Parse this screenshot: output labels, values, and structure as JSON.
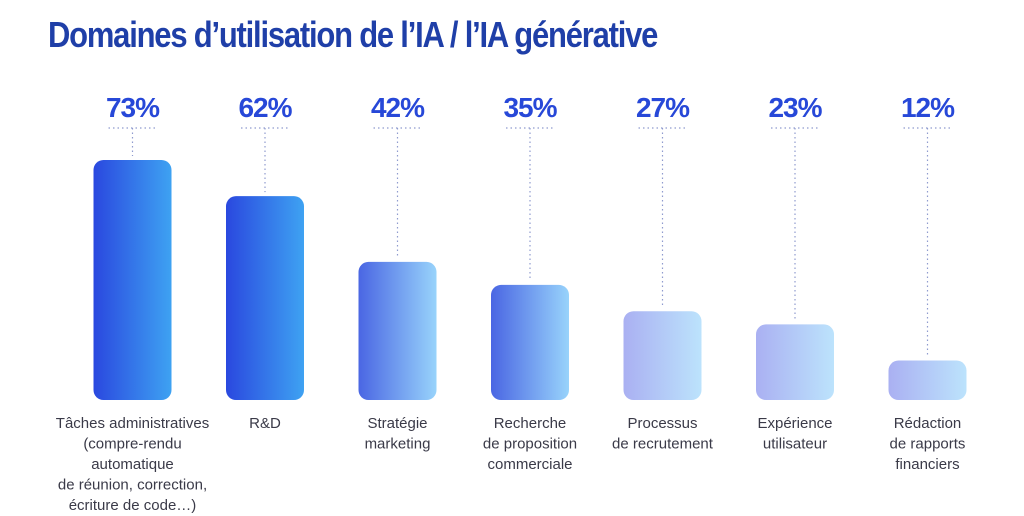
{
  "title": "Domaines d’utilisation de l’IA / l’IA générative",
  "chart_data": {
    "type": "bar",
    "title": "Domaines d’utilisation de l’IA / l’IA générative",
    "xlabel": "",
    "ylabel": "",
    "ylim": [
      0,
      100
    ],
    "categories": [
      [
        "Tâches administratives",
        "(compre-rendu",
        "automatique",
        "de réunion, correction,",
        "écriture de code…)"
      ],
      [
        "R&D"
      ],
      [
        "Stratégie",
        "marketing"
      ],
      [
        "Recherche",
        "de proposition",
        "commerciale"
      ],
      [
        "Processus",
        "de recrutement"
      ],
      [
        "Expérience",
        "utilisateur"
      ],
      [
        "Rédaction",
        "de rapports",
        "financiers"
      ]
    ],
    "values": [
      73,
      62,
      42,
      35,
      27,
      23,
      12
    ],
    "value_labels": [
      "73%",
      "62%",
      "42%",
      "35%",
      "27%",
      "23%",
      "12%"
    ],
    "grid": false,
    "legend": "none",
    "colors": {
      "title": "#1f3fa8",
      "value_label": "#2748d8",
      "dotted_line": "#8f9bcf",
      "category_text": "#3a3a48",
      "bar_gradients": [
        [
          "#2a48df",
          "#3ea2f2"
        ],
        [
          "#2a48df",
          "#3ea2f2"
        ],
        [
          "#4a66e3",
          "#98d3fb"
        ],
        [
          "#4a66e3",
          "#98d3fb"
        ],
        [
          "#aab0f2",
          "#bce3fc"
        ],
        [
          "#aab0f2",
          "#bce3fc"
        ],
        [
          "#aab0f2",
          "#bce3fc"
        ]
      ]
    }
  }
}
